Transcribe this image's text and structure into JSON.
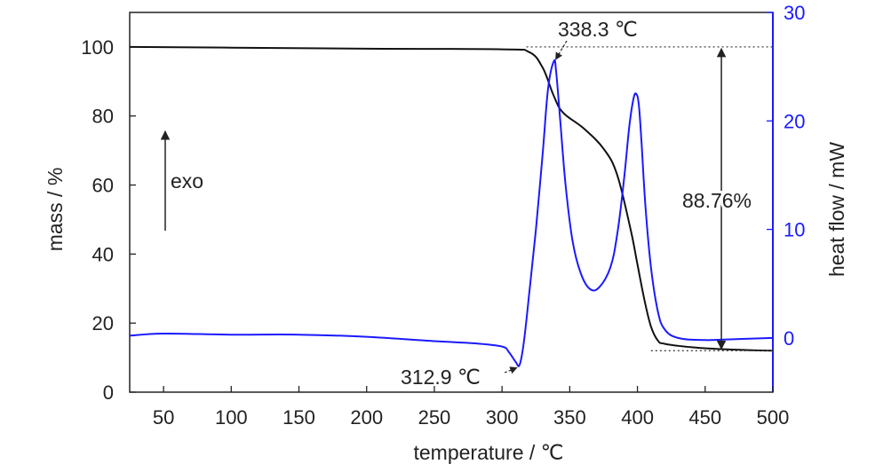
{
  "chart_data": {
    "type": "line",
    "title": "",
    "xlabel": "temperature / ℃",
    "ylabel_left": "mass / %",
    "ylabel_right": "heat flow / mW",
    "xlim": [
      25,
      500
    ],
    "ylim_left": [
      0,
      110
    ],
    "ylim_right": [
      -5,
      30
    ],
    "x_ticks": [
      50,
      100,
      150,
      200,
      250,
      300,
      350,
      400,
      450,
      500
    ],
    "y_left_ticks": [
      0,
      20,
      40,
      60,
      80,
      100
    ],
    "y_right_ticks": [
      0,
      10,
      20,
      30
    ],
    "colors": {
      "mass": "#111111",
      "heat_flow": "#1a1aff",
      "right_axis": "#1a1aff",
      "frame": "#222222"
    },
    "series": [
      {
        "axis": "left",
        "x": [
          25,
          100,
          200,
          300,
          320,
          330,
          338,
          345,
          360,
          375,
          385,
          395,
          400,
          405,
          410,
          415,
          420,
          440,
          460,
          480,
          500
        ],
        "values": [
          100,
          99.8,
          99.5,
          99.3,
          98.5,
          94,
          86,
          81,
          76.5,
          70.5,
          63,
          47,
          37,
          27,
          19,
          15,
          14,
          13,
          12.5,
          12.2,
          12
        ]
      },
      {
        "axis": "right",
        "x": [
          25,
          50,
          100,
          150,
          200,
          250,
          280,
          300,
          305,
          310,
          312.9,
          316,
          320,
          325,
          330,
          334,
          338.3,
          340,
          343,
          347,
          352,
          358,
          365,
          372,
          380,
          385,
          390,
          394,
          397,
          399,
          401,
          403,
          406,
          410,
          415,
          420,
          430,
          450,
          475,
          500
        ],
        "values": [
          0.2,
          0.4,
          0.3,
          0.3,
          0.1,
          -0.3,
          -0.5,
          -0.8,
          -1.3,
          -2.2,
          -2.5,
          -0.5,
          4,
          10,
          17,
          23,
          25.5,
          24.5,
          20,
          14,
          9,
          6,
          4.5,
          4.7,
          6.5,
          9.5,
          14.5,
          19.5,
          22,
          22.5,
          21.5,
          18,
          12,
          6.5,
          2.5,
          0.8,
          0,
          -0.2,
          -0.1,
          0
        ]
      }
    ],
    "annotations": {
      "peak_label": "338.3 ℃",
      "onset_label": "312.9 ℃",
      "mass_loss_label": "88.76%",
      "exo_label": "exo"
    }
  }
}
